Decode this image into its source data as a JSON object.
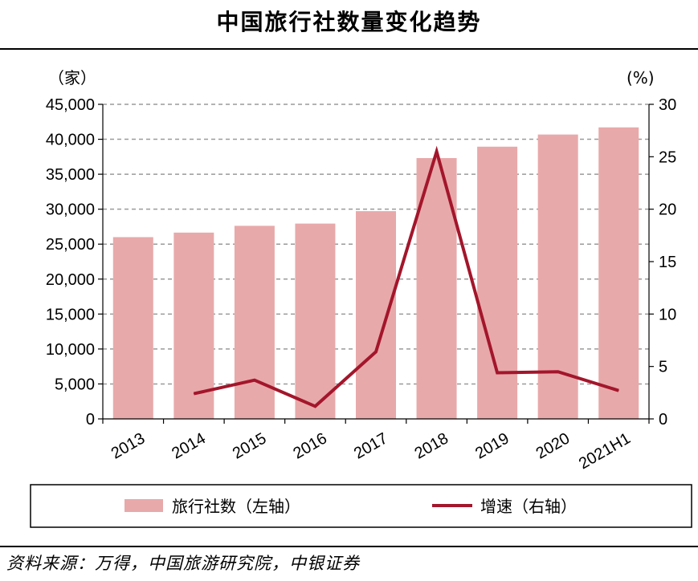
{
  "title": "中国旅行社数量变化趋势",
  "source": "资料来源：万得，中国旅游研究院，中银证券",
  "chart_data": {
    "type": "bar",
    "categories": [
      "2013",
      "2014",
      "2015",
      "2016",
      "2017",
      "2018",
      "2019",
      "2020",
      "2021H1"
    ],
    "series": [
      {
        "name": "旅行社数（左轴）",
        "type": "bar",
        "axis": "left",
        "values": [
          26000,
          26650,
          27620,
          27940,
          29720,
          37310,
          38940,
          40680,
          41700
        ]
      },
      {
        "name": "增速（右轴）",
        "type": "line",
        "axis": "right",
        "values": [
          null,
          2.4,
          3.7,
          1.2,
          6.4,
          25.5,
          4.4,
          4.5,
          2.7
        ]
      }
    ],
    "left_axis": {
      "unit": "（家）",
      "ylim": [
        0,
        45000
      ],
      "ticks": [
        "0",
        "5,000",
        "10,000",
        "15,000",
        "20,000",
        "25,000",
        "30,000",
        "35,000",
        "40,000",
        "45,000"
      ]
    },
    "right_axis": {
      "unit": "(%)",
      "ylim": [
        0,
        30
      ],
      "ticks": [
        "0",
        "5",
        "10",
        "15",
        "20",
        "25",
        "30"
      ]
    },
    "grid": "horizontal-dashed",
    "legend_position": "bottom",
    "colors": {
      "bar": "#E8A9AA",
      "line": "#A3162B"
    }
  }
}
